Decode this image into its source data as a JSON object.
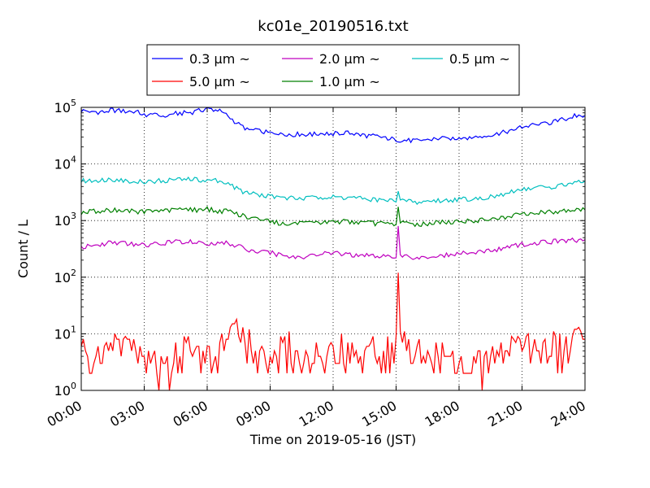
{
  "chart_data": {
    "type": "line",
    "title": "kc01e_20190516.txt",
    "xlabel": "Time on 2019-05-16 (JST)",
    "ylabel": "Count / L",
    "yscale": "log",
    "ylim": [
      1,
      100000
    ],
    "xlim": [
      "00:00",
      "24:00"
    ],
    "grid": true,
    "legend_placement": "top",
    "x_ticks": [
      "00:00",
      "03:00",
      "06:00",
      "09:00",
      "12:00",
      "15:00",
      "18:00",
      "21:00",
      "24:00"
    ],
    "y_ticks": [
      {
        "base": "10",
        "exp": "0"
      },
      {
        "base": "10",
        "exp": "1"
      },
      {
        "base": "10",
        "exp": "2"
      },
      {
        "base": "10",
        "exp": "3"
      },
      {
        "base": "10",
        "exp": "4"
      },
      {
        "base": "10",
        "exp": "5"
      }
    ],
    "x_hours": [
      0,
      0.5,
      1,
      1.5,
      2,
      2.5,
      3,
      3.5,
      4,
      4.5,
      5,
      5.5,
      6,
      6.5,
      7,
      7.5,
      8,
      8.5,
      9,
      9.5,
      10,
      10.5,
      11,
      11.5,
      12,
      12.5,
      13,
      13.5,
      14,
      14.5,
      15,
      15.5,
      16,
      16.5,
      17,
      17.5,
      18,
      18.5,
      19,
      19.5,
      20,
      20.5,
      21,
      21.5,
      22,
      22.5,
      23,
      23.5,
      24
    ],
    "series": [
      {
        "name": "0.3 µm ~",
        "color": "#0000ff",
        "values": [
          88000,
          85000,
          82000,
          90000,
          85000,
          86000,
          75000,
          72000,
          70000,
          78000,
          80000,
          85000,
          95000,
          90000,
          70000,
          50000,
          40000,
          38000,
          35000,
          36000,
          33000,
          34000,
          33000,
          35000,
          34000,
          36000,
          34000,
          32000,
          31000,
          29000,
          27000,
          26000,
          26000,
          27000,
          28000,
          28000,
          29000,
          30000,
          30000,
          32000,
          35000,
          40000,
          45000,
          48000,
          50000,
          55000,
          62000,
          70000,
          72000
        ]
      },
      {
        "name": "0.5 µm ~",
        "color": "#00bfbf",
        "values": [
          5000,
          5100,
          5300,
          5400,
          5200,
          5000,
          4800,
          5000,
          5100,
          5300,
          5400,
          5300,
          5200,
          5100,
          4500,
          3500,
          3000,
          2900,
          2700,
          2500,
          2500,
          2450,
          2500,
          2600,
          2600,
          2550,
          2500,
          2400,
          2350,
          2300,
          2200,
          2300,
          2100,
          2200,
          2250,
          2300,
          2400,
          2450,
          2500,
          2600,
          2800,
          3200,
          3600,
          3800,
          3900,
          4000,
          4200,
          4600,
          5000
        ]
      },
      {
        "name": "1.0 µm ~",
        "color": "#008000",
        "values": [
          1400,
          1450,
          1500,
          1550,
          1500,
          1450,
          1450,
          1500,
          1500,
          1550,
          1600,
          1550,
          1600,
          1500,
          1450,
          1300,
          1100,
          1050,
          1000,
          900,
          900,
          880,
          880,
          920,
          950,
          980,
          950,
          920,
          900,
          880,
          880,
          900,
          850,
          900,
          920,
          950,
          980,
          1000,
          1000,
          1050,
          1100,
          1200,
          1300,
          1350,
          1400,
          1450,
          1500,
          1550,
          1550
        ]
      },
      {
        "name": "2.0 µm ~",
        "color": "#bf00bf",
        "values": [
          340,
          350,
          380,
          420,
          400,
          380,
          370,
          390,
          400,
          420,
          430,
          420,
          400,
          410,
          400,
          350,
          300,
          280,
          270,
          250,
          230,
          230,
          240,
          260,
          270,
          260,
          250,
          240,
          240,
          230,
          230,
          240,
          220,
          230,
          240,
          250,
          260,
          270,
          280,
          300,
          320,
          350,
          380,
          400,
          420,
          430,
          440,
          450,
          460
        ]
      },
      {
        "name": "5.0 µm ~",
        "color": "#ff0000",
        "values": [
          5,
          4,
          3,
          6,
          5,
          7,
          4,
          3,
          2,
          5,
          6,
          4,
          3,
          5,
          8,
          12,
          7,
          4,
          3,
          5,
          6,
          4,
          3,
          5,
          4,
          6,
          5,
          4,
          6,
          5,
          7,
          6,
          5,
          4,
          4,
          3,
          3,
          2,
          3,
          3,
          4,
          5,
          5,
          6,
          5,
          6,
          5,
          7,
          8
        ]
      }
    ],
    "spikes": [
      {
        "series": "0.5 µm ~",
        "x_hour": 15.1,
        "value": 3300
      },
      {
        "series": "1.0 µm ~",
        "x_hour": 15.1,
        "value": 1750
      },
      {
        "series": "2.0 µm ~",
        "x_hour": 15.1,
        "value": 800
      },
      {
        "series": "5.0 µm ~",
        "x_hour": 15.1,
        "value": 120
      }
    ]
  }
}
